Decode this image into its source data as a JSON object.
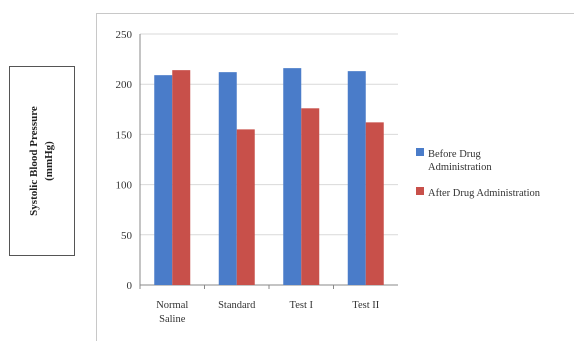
{
  "chart_data": {
    "type": "bar",
    "ylabel_lines": [
      "Systolic Blood Pressure",
      "(mmHg)"
    ],
    "categories": [
      [
        "Normal",
        "Saline"
      ],
      [
        "Standard"
      ],
      [
        "Test I"
      ],
      [
        "Test II"
      ]
    ],
    "series": [
      {
        "name_lines": [
          "Before Drug",
          "Administration"
        ],
        "color": "#4a7cc9",
        "values": [
          209,
          212,
          216,
          213
        ]
      },
      {
        "name_lines": [
          "After Drug Administration"
        ],
        "color": "#c8504a",
        "values": [
          214,
          155,
          176,
          162
        ]
      }
    ],
    "ylim": [
      0,
      250
    ],
    "yticks": [
      0,
      50,
      100,
      150,
      200,
      250
    ],
    "grid": true,
    "legend_position": "right"
  }
}
